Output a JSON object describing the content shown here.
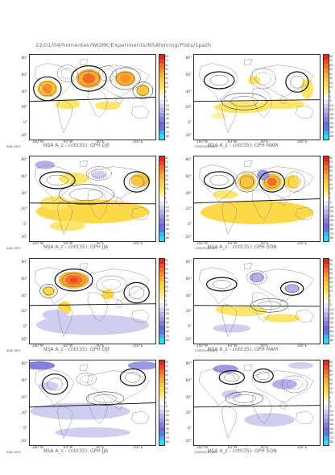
{
  "title": "22/01/04/home/dan/WORK/Experiments/NSAforcing/Plots/1path",
  "colorbar": {
    "labels": [
      "80",
      "70",
      "60",
      "50",
      "40",
      "30",
      "20",
      "10",
      "5",
      "0",
      "-5",
      "-10",
      "-20",
      "-30",
      "-40",
      "-50",
      "-60",
      "-70",
      "-80"
    ],
    "colors": [
      "#e0281c",
      "#f2461e",
      "#f66d22",
      "#f9902a",
      "#fbae38",
      "#fcc640",
      "#fdd94a",
      "#fee66a",
      "#fff2a8",
      "#ffffff",
      "#e8e6f6",
      "#cfcdf0",
      "#b4b1ea",
      "#9c98e4",
      "#8580de",
      "#6d69d8",
      "#5b7ae8",
      "#3fb4f2",
      "#2ae0f8"
    ]
  },
  "axes": {
    "lat_labels": [
      "80°",
      "60°",
      "40°",
      "20°",
      "0°",
      "20°"
    ],
    "lon_labels": [
      "160°W",
      "60°W",
      "40°E",
      "140°E"
    ]
  },
  "corner_labels": {
    "left": "SUN 1997",
    "right": "CONTOUR 20/1"
  },
  "panels": [
    {
      "caption": "NSA A_z - cntl(35): GPH DJF",
      "side": "left"
    },
    {
      "caption": "NSA A_z - cntl(35): GPH MAM",
      "side": "right"
    },
    {
      "caption": "NSA A_z - cntl(35): GPH JJA",
      "side": "left"
    },
    {
      "caption": "NSA A_z - cntl(35): GPH SON",
      "side": "right"
    },
    {
      "caption": "NSA A_z - cntl(35): GPH DJF",
      "side": "left"
    },
    {
      "caption": "NSA A_z - cntl(35): GPH MAM",
      "side": "right"
    },
    {
      "caption": "NSA A_z - cntl(35): GPH JJA",
      "side": "left"
    },
    {
      "caption": "NSA A_z - cntl(35): GPH SON",
      "side": "right"
    }
  ]
}
